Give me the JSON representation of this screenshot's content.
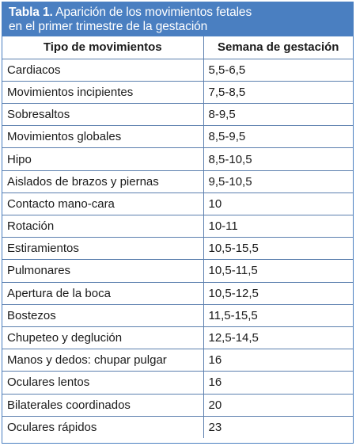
{
  "table": {
    "title_label": "Tabla 1.",
    "title_text": " Aparición de los movimientos fetales",
    "title_line2": "en el primer trimestre de la gestación",
    "header_color": "#4a7fc1",
    "columns": [
      "Tipo de movimientos",
      "Semana de gestación"
    ],
    "rows": [
      [
        "Cardiacos",
        "5,5-6,5"
      ],
      [
        "Movimientos incipientes",
        "7,5-8,5"
      ],
      [
        "Sobresaltos",
        "8-9,5"
      ],
      [
        "Movimientos globales",
        "8,5-9,5"
      ],
      [
        "Hipo",
        "8,5-10,5"
      ],
      [
        "Aislados de brazos y piernas",
        "9,5-10,5"
      ],
      [
        "Contacto mano-cara",
        "10"
      ],
      [
        "Rotación",
        "10-11"
      ],
      [
        "Estiramientos",
        "10,5-15,5"
      ],
      [
        "Pulmonares",
        "10,5-11,5"
      ],
      [
        "Apertura de la boca",
        "10,5-12,5"
      ],
      [
        "Bostezos",
        "11,5-15,5"
      ],
      [
        "Chupeteo y deglución",
        "12,5-14,5"
      ],
      [
        "Manos y dedos: chupar pulgar",
        "16"
      ],
      [
        "Oculares lentos",
        "16"
      ],
      [
        "Bilaterales coordinados",
        "20"
      ],
      [
        "Oculares rápidos",
        "23"
      ]
    ]
  }
}
